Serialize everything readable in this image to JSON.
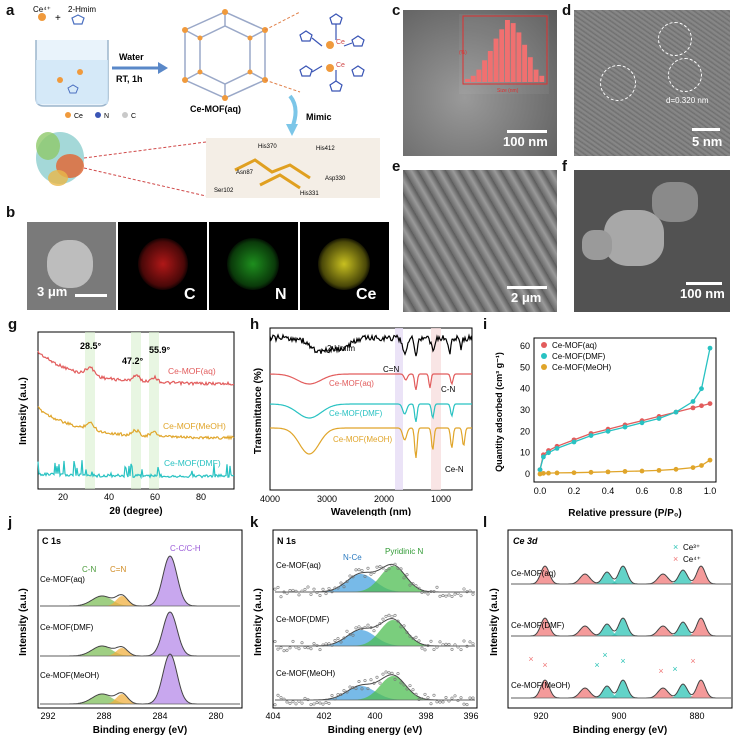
{
  "panel_labels": {
    "a": "a",
    "b": "b",
    "c": "c",
    "d": "d",
    "e": "e",
    "f": "f",
    "g": "g",
    "h": "h",
    "i": "i",
    "j": "j",
    "k": "k",
    "l": "l"
  },
  "panel_a": {
    "reactant1": "Ce⁴⁺",
    "plus": "+",
    "reactant2": "2-Hmim",
    "condition1": "Water",
    "condition2": "RT, 1h",
    "product": "Ce-MOF(aq)",
    "mimic": "Mimic",
    "legend_ce": "Ce",
    "legend_n": "N",
    "legend_c": "C",
    "ce_label_1": "Ce",
    "ce_label_2": "Ce",
    "residues": [
      "His370",
      "His412",
      "Asn87",
      "Asp330",
      "Ser102",
      "His331"
    ]
  },
  "panel_b": {
    "scale": "3 μm",
    "maps": [
      "C",
      "N",
      "Ce"
    ]
  },
  "panel_c": {
    "scale": "100 nm",
    "hist_xlabel": "Size (nm)",
    "hist_ylabel": "(%)",
    "hist_values": [
      1,
      2,
      4,
      7,
      10,
      14,
      17,
      20,
      19,
      16,
      12,
      8,
      4,
      2
    ]
  },
  "panel_d": {
    "scale": "5 nm",
    "lattice": "d=0.320 nm"
  },
  "panel_e": {
    "scale": "2 μm"
  },
  "panel_f": {
    "scale": "100 nm"
  },
  "colors": {
    "aq": "#e25c5c",
    "dmf": "#28c2c2",
    "meoh": "#e0a52a",
    "ligand": "#000000",
    "cc": "#b58ae8",
    "cn": "#7fbf5a",
    "c_eq_n": "#f0b040",
    "nce": "#4aa3e0",
    "pyr": "#4dbd52",
    "ce3": "#2ec4b6",
    "ce4": "#f07878"
  },
  "chart_data": [
    {
      "type": "line",
      "panel": "g",
      "xlabel": "2θ (degree)",
      "ylabel": "Intensity (a.u.)",
      "xlim": [
        5,
        90
      ],
      "xticks": [
        "20",
        "40",
        "60",
        "80"
      ],
      "peaks": [
        "28.5°",
        "47.2°",
        "55.9°"
      ],
      "series": [
        {
          "name": "Ce-MOF(aq)"
        },
        {
          "name": "Ce-MOF(MeOH)"
        },
        {
          "name": "Ce-MOF(DMF)"
        }
      ]
    },
    {
      "type": "line",
      "panel": "h",
      "xlabel": "Wavelength (nm)",
      "ylabel": "Transmittance (%)",
      "xlim": [
        4000,
        400
      ],
      "xticks": [
        "4000",
        "3000",
        "2000",
        "1000"
      ],
      "annotations": [
        "C=N",
        "C-N",
        "Ce-N"
      ],
      "series": [
        {
          "name": "2-Hmim"
        },
        {
          "name": "Ce-MOF(aq)"
        },
        {
          "name": "Ce-MOF(DMF)"
        },
        {
          "name": "Ce-MOF(MeOH)"
        }
      ]
    },
    {
      "type": "scatter",
      "panel": "i",
      "xlabel": "Relative pressure (P/P₀)",
      "ylabel": "Quantity adsorbed (cm³ g⁻¹)",
      "xlim": [
        0,
        1.0
      ],
      "ylim": [
        0,
        60
      ],
      "xticks": [
        "0.0",
        "0.2",
        "0.4",
        "0.6",
        "0.8",
        "1.0"
      ],
      "yticks": [
        "0",
        "10",
        "20",
        "30",
        "40",
        "50",
        "60"
      ],
      "x": [
        0.0,
        0.02,
        0.05,
        0.1,
        0.2,
        0.3,
        0.4,
        0.5,
        0.6,
        0.7,
        0.8,
        0.9,
        0.95,
        1.0
      ],
      "series": [
        {
          "name": "Ce-MOF(aq)",
          "values": [
            2,
            9,
            11,
            13,
            16,
            19,
            21,
            23,
            25,
            27,
            29,
            31,
            32,
            33
          ]
        },
        {
          "name": "Ce-MOF(DMF)",
          "values": [
            2,
            8,
            10,
            12,
            15,
            18,
            20,
            22,
            24,
            26,
            29,
            34,
            40,
            59
          ]
        },
        {
          "name": "Ce-MOF(MeOH)",
          "values": [
            0,
            0.3,
            0.4,
            0.5,
            0.6,
            0.8,
            1.0,
            1.2,
            1.4,
            1.7,
            2.2,
            3.0,
            4.0,
            6.5
          ]
        }
      ]
    },
    {
      "type": "line",
      "panel": "j",
      "title": "C 1s",
      "xlabel": "Binding energy (eV)",
      "ylabel": "Intensity (a.u.)",
      "xlim": [
        292,
        278
      ],
      "xticks": [
        "292",
        "288",
        "284",
        "280"
      ],
      "components": [
        "C-N",
        "C=N",
        "C-C/C-H"
      ],
      "series": [
        {
          "name": "Ce-MOF(aq)"
        },
        {
          "name": "Ce-MOF(DMF)"
        },
        {
          "name": "Ce-MOF(MeOH)"
        }
      ]
    },
    {
      "type": "line",
      "panel": "k",
      "title": "N 1s",
      "xlabel": "Binding energy (eV)",
      "ylabel": "Intensity (a.u.)",
      "xlim": [
        404,
        396
      ],
      "xticks": [
        "404",
        "402",
        "400",
        "398",
        "396"
      ],
      "components": [
        "N-Ce",
        "Pyridinic N"
      ],
      "series": [
        {
          "name": "Ce-MOF(aq)"
        },
        {
          "name": "Ce-MOF(DMF)"
        },
        {
          "name": "Ce-MOF(MeOH)"
        }
      ]
    },
    {
      "type": "line",
      "panel": "l",
      "title": "Ce 3d",
      "xlabel": "Binding energy (eV)",
      "ylabel": "Intensity (a.u.)",
      "xlim": [
        925,
        870
      ],
      "xticks": [
        "920",
        "900",
        "880"
      ],
      "legend": [
        "Ce³⁺",
        "Ce⁴⁺"
      ],
      "series": [
        {
          "name": "Ce-MOF(aq)"
        },
        {
          "name": "Ce-MOF(DMF)"
        },
        {
          "name": "Ce-MOF(MeOH)"
        }
      ]
    }
  ]
}
